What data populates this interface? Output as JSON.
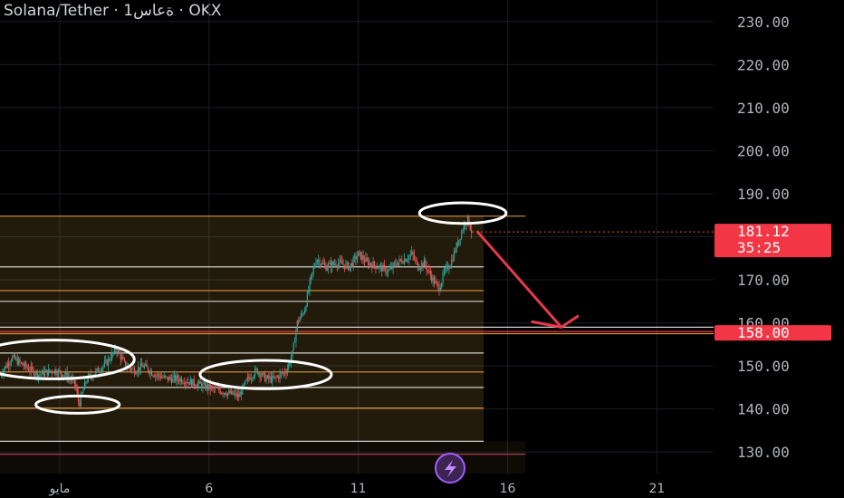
{
  "header": {
    "title": "Solana/Tether · 1ةعاس · OKX"
  },
  "chart_data": {
    "type": "candlestick",
    "title": "Solana/Tether · 1ةعاس · OKX",
    "xlabel": "",
    "ylabel": "",
    "ylim": [
      125,
      235
    ],
    "y_ticks": [
      "230.00",
      "220.00",
      "210.00",
      "200.00",
      "190.00",
      "180.00",
      "170.00",
      "160.00",
      "150.00",
      "140.00",
      "130.00"
    ],
    "y_tick_values": [
      230,
      220,
      210,
      200,
      190,
      180,
      170,
      160,
      150,
      140,
      130
    ],
    "x_ticks": [
      {
        "label": "مايو",
        "day": 1
      },
      {
        "label": "6",
        "day": 6
      },
      {
        "label": "11",
        "day": 11
      },
      {
        "label": "16",
        "day": 16
      },
      {
        "label": "21",
        "day": 21
      }
    ],
    "xlim_days": [
      -1.0,
      22.9
    ],
    "current_price": {
      "value": 181.12,
      "label": "181.12",
      "countdown": "35:25",
      "color": "#f23645"
    },
    "target_price": {
      "value": 158.0,
      "label": "158.00",
      "color": "#f23645"
    },
    "fib_levels": [
      184.8,
      173.0,
      167.5,
      165.0,
      159.0,
      157.5,
      153.0,
      148.6,
      145.0,
      140.2,
      132.5,
      129.5
    ],
    "zone": {
      "top": 184.8,
      "bottom": 132.5,
      "start_day": -1.0,
      "end_day": 15.2
    },
    "candles_anchor": [
      [
        -1.0,
        148
      ],
      [
        -0.6,
        152
      ],
      [
        -0.2,
        150
      ],
      [
        0.3,
        148
      ],
      [
        0.8,
        149
      ],
      [
        1.2,
        148
      ],
      [
        1.5,
        146
      ],
      [
        1.65,
        141
      ],
      [
        1.9,
        147
      ],
      [
        2.3,
        149
      ],
      [
        2.6,
        151
      ],
      [
        2.9,
        154
      ],
      [
        3.2,
        150
      ],
      [
        3.5,
        149
      ],
      [
        3.8,
        150
      ],
      [
        4.2,
        148
      ],
      [
        4.6,
        147
      ],
      [
        5.0,
        147
      ],
      [
        5.5,
        146
      ],
      [
        6.0,
        145
      ],
      [
        6.5,
        144
      ],
      [
        7.0,
        143
      ],
      [
        7.3,
        147
      ],
      [
        7.6,
        149
      ],
      [
        7.9,
        147
      ],
      [
        8.2,
        147
      ],
      [
        8.6,
        149
      ],
      [
        8.8,
        153
      ],
      [
        8.95,
        160
      ],
      [
        9.2,
        163
      ],
      [
        9.4,
        170
      ],
      [
        9.6,
        175
      ],
      [
        9.9,
        173
      ],
      [
        10.3,
        174
      ],
      [
        10.7,
        173
      ],
      [
        11.0,
        176
      ],
      [
        11.3,
        174
      ],
      [
        11.7,
        173
      ],
      [
        12.0,
        172
      ],
      [
        12.3,
        174
      ],
      [
        12.6,
        175
      ],
      [
        12.8,
        176
      ],
      [
        13.0,
        173
      ],
      [
        13.2,
        174
      ],
      [
        13.5,
        170
      ],
      [
        13.7,
        168
      ],
      [
        13.9,
        172
      ],
      [
        14.1,
        174
      ],
      [
        14.3,
        178
      ],
      [
        14.5,
        182
      ],
      [
        14.65,
        184.5
      ],
      [
        14.8,
        181.1
      ]
    ],
    "annotations": {
      "ellipses": [
        {
          "day": 0.8,
          "price": 151.5,
          "rx_days": 2.7,
          "ry_price": 4.5
        },
        {
          "day": 1.6,
          "price": 141.0,
          "rx_days": 1.4,
          "ry_price": 2.0
        },
        {
          "day": 7.9,
          "price": 148.0,
          "rx_days": 2.2,
          "ry_price": 3.3
        },
        {
          "day": 14.5,
          "price": 185.5,
          "rx_days": 1.45,
          "ry_price": 2.4
        }
      ],
      "arrow": {
        "from": [
          15.0,
          181.1
        ],
        "to": [
          17.8,
          159.0
        ]
      }
    },
    "colors": {
      "up": "#26a69a",
      "down": "#ef5350",
      "zone_fill": "#c9a04a",
      "fib_orange": "#f0a040",
      "fib_white": "#e6e6e6",
      "fib_red": "#c2455a",
      "ellipse": "#ffffff",
      "arrow": "#e8394a",
      "background": "#000000",
      "grid": "#1b1d24"
    }
  }
}
